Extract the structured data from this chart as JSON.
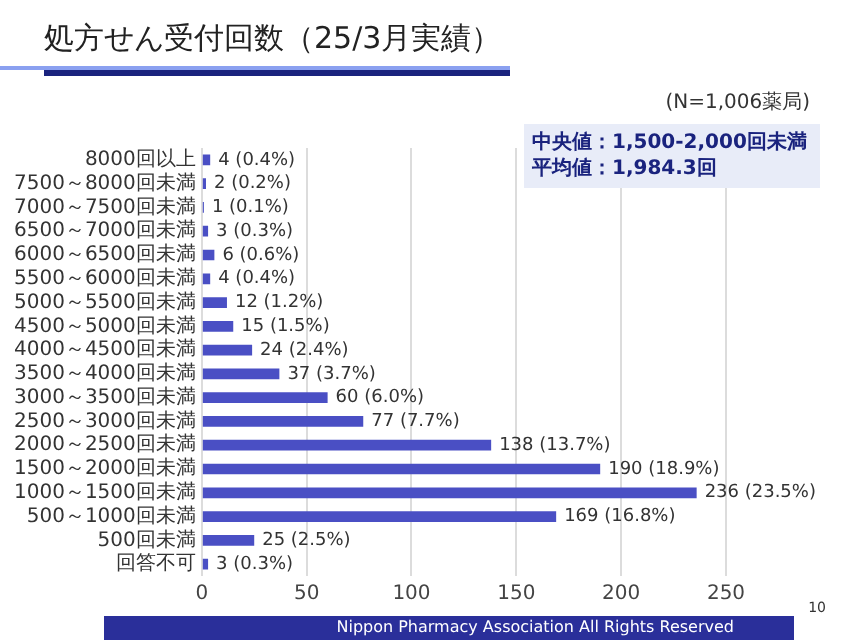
{
  "chart_data": {
    "type": "bar",
    "orientation": "horizontal",
    "title": "処方せん受付回数（25/3月実績）",
    "categories": [
      "8000回以上",
      "7500～8000回未満",
      "7000～7500回未満",
      "6500～7000回未満",
      "6000～6500回未満",
      "5500～6000回未満",
      "5000～5500回未満",
      "4500～5000回未満",
      "4000～4500回未満",
      "3500～4000回未満",
      "3000～3500回未満",
      "2500～3000回未満",
      "2000～2500回未満",
      "1500～2000回未満",
      "1000～1500回未満",
      "500～1000回未満",
      "500回未満",
      "回答不可"
    ],
    "values": [
      4,
      2,
      1,
      3,
      6,
      4,
      12,
      15,
      24,
      37,
      60,
      77,
      138,
      190,
      236,
      169,
      25,
      3
    ],
    "value_labels": [
      "4 (0.4%)",
      "2 (0.2%)",
      "1 (0.1%)",
      "3 (0.3%)",
      "6 (0.6%)",
      "4 (0.4%)",
      "12 (1.2%)",
      "15 (1.5%)",
      "24 (2.4%)",
      "37 (3.7%)",
      "60 (6.0%)",
      "77 (7.7%)",
      "138 (13.7%)",
      "190 (18.9%)",
      "236 (23.5%)",
      "169 (16.8%)",
      "25 (2.5%)",
      "3 (0.3%)"
    ],
    "color": "#4a4fc4",
    "xlim": [
      0,
      250
    ],
    "xticks": [
      0,
      50,
      100,
      150,
      200,
      250
    ],
    "grid": "x",
    "legend": false,
    "annotations": [
      "(N=1,006薬局)",
      "中央値：1,500-2,000回未満",
      "平均値：1,984.3回",
      "Nippon Pharmacy Association All Rights Reserved",
      "10"
    ]
  }
}
